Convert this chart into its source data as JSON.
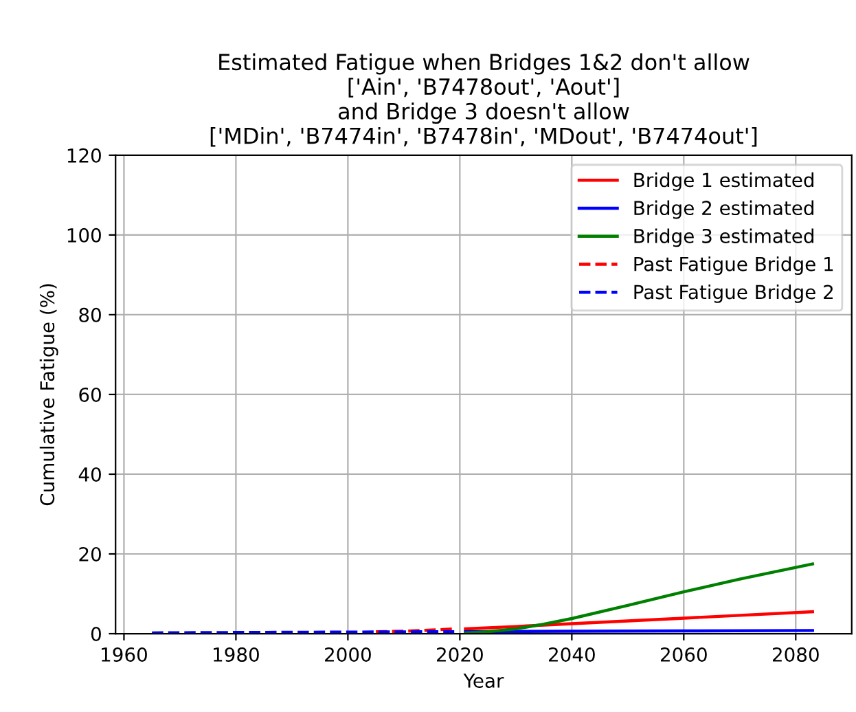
{
  "chart_data": {
    "type": "line",
    "title": "Estimated Fatigue when Bridges 1&2 don't allow\n['Ain', 'B7478out', 'Aout']\nand Bridge 3 doesn't allow\n['MDin', 'B7474in', 'B7478in', 'MDout', 'B7474out']",
    "xlabel": "Year",
    "ylabel": "Cumulative Fatigue (%)",
    "series": [
      {
        "name": "Bridge 1 estimated",
        "color": "#ff0000",
        "line_style": "solid",
        "x": [
          2021,
          2030,
          2040,
          2050,
          2060,
          2070,
          2083
        ],
        "values": [
          1.2,
          1.8,
          2.5,
          3.2,
          3.9,
          4.6,
          5.5
        ]
      },
      {
        "name": "Bridge 2 estimated",
        "color": "#0000ff",
        "line_style": "solid",
        "x": [
          2021,
          2040,
          2060,
          2083
        ],
        "values": [
          0.5,
          0.6,
          0.7,
          0.8
        ]
      },
      {
        "name": "Bridge 3 estimated",
        "color": "#008000",
        "line_style": "solid",
        "x": [
          2021,
          2025,
          2030,
          2035,
          2040,
          2050,
          2060,
          2070,
          2083
        ],
        "values": [
          0.2,
          0.5,
          1.2,
          2.4,
          3.8,
          7.1,
          10.5,
          13.7,
          17.5
        ]
      },
      {
        "name": "Past Fatigue Bridge 1",
        "color": "#ff0000",
        "line_style": "dashed",
        "x": [
          2005,
          2010,
          2015,
          2019
        ],
        "values": [
          0.5,
          0.6,
          0.9,
          1.2
        ]
      },
      {
        "name": "Past Fatigue Bridge 2",
        "color": "#0000ff",
        "line_style": "dashed",
        "x": [
          1965,
          1980,
          2000,
          2019
        ],
        "values": [
          0.2,
          0.3,
          0.4,
          0.5
        ]
      }
    ],
    "xlim": [
      1958.5,
      2090
    ],
    "xticks": [
      1960,
      1980,
      2000,
      2020,
      2040,
      2060,
      2080
    ],
    "ylim": [
      0,
      120
    ],
    "yticks": [
      0,
      20,
      40,
      60,
      80,
      100,
      120
    ],
    "grid": true,
    "legend": "top right"
  }
}
